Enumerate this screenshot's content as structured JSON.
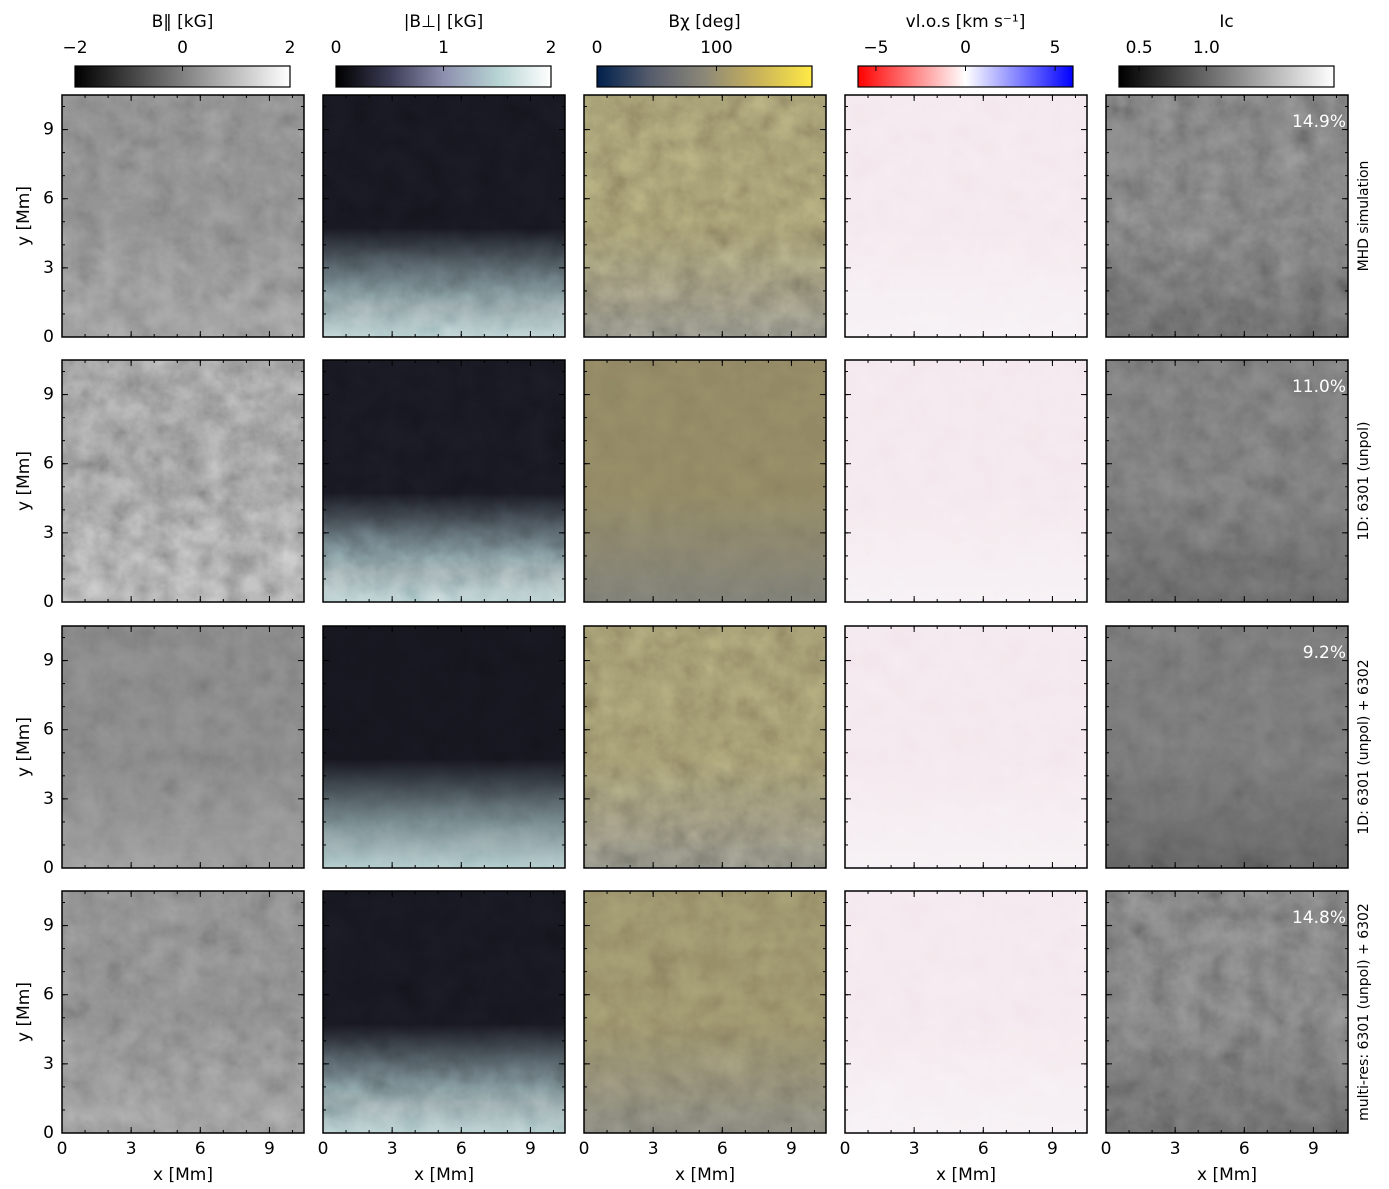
{
  "chart_data": {
    "type": "image-grid",
    "columns": [
      {
        "title": "B‖ [kG]",
        "clim": [
          -2,
          2
        ],
        "cticks": [
          {
            "value": -2,
            "label": "−2"
          },
          0,
          2
        ],
        "colormap": [
          "#000000",
          "#ffffff"
        ]
      },
      {
        "title": "|B⊥| [kG]",
        "clim": [
          0,
          2
        ],
        "cticks": [
          0,
          1,
          2
        ],
        "colormap": [
          "#000000",
          "#3b3b55",
          "#8d8fae",
          "#b6d3d3",
          "#ffffff"
        ]
      },
      {
        "title": "Bχ [deg]",
        "clim": [
          0,
          180
        ],
        "cticks": [
          0,
          100
        ],
        "colormap": [
          "#00204c",
          "#575d6d",
          "#8c8878",
          "#c9b35a",
          "#ffea46"
        ]
      },
      {
        "title": "vl.o.s [km s⁻¹]",
        "clim": [
          -6,
          6
        ],
        "cticks": [
          {
            "value": -5,
            "label": "−5"
          },
          0,
          5
        ],
        "colormap": [
          "#ff0000",
          "#ffffff",
          "#0000ff"
        ]
      },
      {
        "title": "Ic",
        "clim": [
          0.35,
          1.95
        ],
        "cticks": [
          0.5,
          {
            "value": 1,
            "label": "1.0"
          }
        ],
        "colormap": [
          "#000000",
          "#ffffff"
        ]
      }
    ],
    "rows": [
      "MHD simulation",
      "1D: 6301 (unpol)",
      "1D: 6301 (unpol) + 6302",
      "multi-res: 6301 (unpol) + 6302"
    ],
    "contrast": {
      "values": [
        14.9,
        11.0,
        9.2,
        14.8
      ],
      "value_labels": [
        "14.9%",
        "11.0%",
        "9.2%",
        "14.8%"
      ]
    },
    "xlabel": "x [Mm]",
    "ylabel": "y [Mm]",
    "xlim": [
      0,
      10.5
    ],
    "ylim": [
      0,
      10.5
    ],
    "xticks": [
      0,
      3,
      6,
      9
    ],
    "yticks": [
      0,
      3,
      6,
      9
    ]
  }
}
